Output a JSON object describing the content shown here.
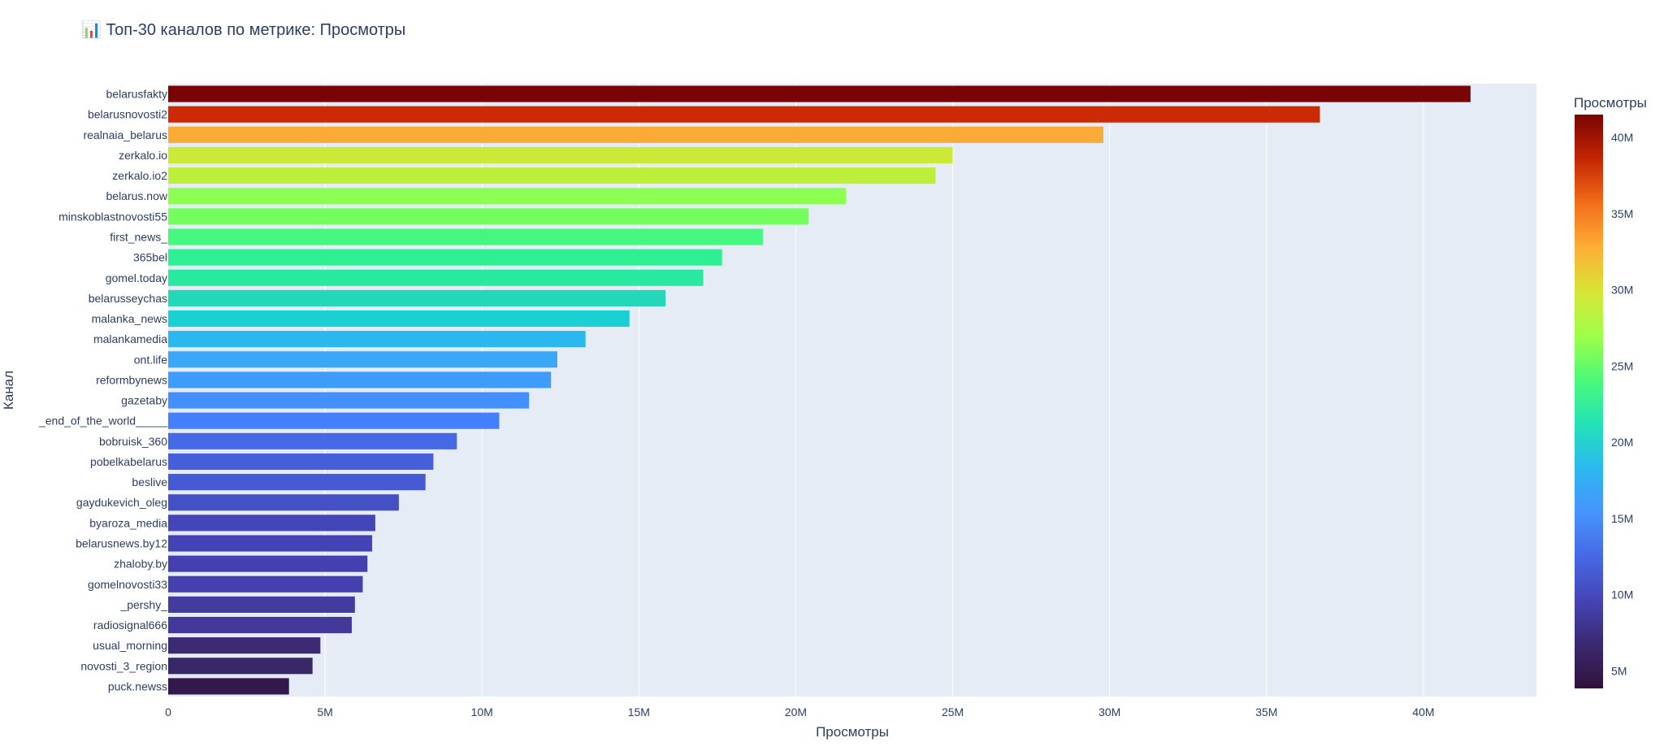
{
  "chart_data": {
    "type": "bar",
    "orientation": "horizontal",
    "title": "📊 Топ-30 каналов по метрике: Просмотры",
    "xlabel": "Просмотры",
    "ylabel": "Канал",
    "xlim": [
      0,
      43600000
    ],
    "x_ticks": [
      {
        "value": 0,
        "label": "0"
      },
      {
        "value": 5000000,
        "label": "5M"
      },
      {
        "value": 10000000,
        "label": "10M"
      },
      {
        "value": 15000000,
        "label": "15M"
      },
      {
        "value": 20000000,
        "label": "20M"
      },
      {
        "value": 25000000,
        "label": "25M"
      },
      {
        "value": 30000000,
        "label": "30M"
      },
      {
        "value": 35000000,
        "label": "35M"
      },
      {
        "value": 40000000,
        "label": "40M"
      }
    ],
    "grid": true,
    "colorscale": "Turbo",
    "categories": [
      "belarusfakty",
      "belarusnovosti2",
      "realnaia_belarus",
      "zerkalo.io",
      "zerkalo.io2",
      "belarus.now",
      "minskoblastnovosti55",
      "first_news_",
      "365bel",
      "gomel.today",
      "belarusseychas",
      "malanka_news",
      "malankamedia",
      "ont.life",
      "reformbynews",
      "gazetaby",
      "_end_of_the_world_____",
      "bobruisk_360",
      "pobelkabelarus",
      "beslive",
      "gaydukevich_oleg",
      "byaroza_media",
      "belarusnews.by12",
      "zhaloby.by",
      "gomelnovosti33",
      "_pershy_",
      "radiosignal666",
      "usual_morning",
      "novosti_3_region",
      "puck.newss"
    ],
    "values": [
      41500000,
      36700000,
      29800000,
      25000000,
      24450000,
      21600000,
      20400000,
      18950000,
      17650000,
      17050000,
      15850000,
      14700000,
      13300000,
      12400000,
      12200000,
      11500000,
      10550000,
      9200000,
      8450000,
      8200000,
      7350000,
      6600000,
      6500000,
      6350000,
      6200000,
      5950000,
      5850000,
      4850000,
      4600000,
      3850000
    ],
    "colors": [
      "#7a0403",
      "#cb2a04",
      "#fba937",
      "#cbe936",
      "#bdef3a",
      "#8dff52",
      "#74fe5d",
      "#45f67f",
      "#2fef93",
      "#29e8a0",
      "#22d8b8",
      "#1bd0d5",
      "#2ab8ef",
      "#3aa8f7",
      "#3e9dfc",
      "#4290fe",
      "#4480fb",
      "#4669e6",
      "#465ed9",
      "#465ad5",
      "#4550c5",
      "#4445b8",
      "#4443b5",
      "#4440b1",
      "#4440b0",
      "#433b9e",
      "#43399b",
      "#3d2a74",
      "#3a2767",
      "#33184e"
    ],
    "colorbar": {
      "title": "Просмотры",
      "ticks": [
        {
          "value": 5000000,
          "label": "5M"
        },
        {
          "value": 10000000,
          "label": "10M"
        },
        {
          "value": 15000000,
          "label": "15M"
        },
        {
          "value": 20000000,
          "label": "20M"
        },
        {
          "value": 25000000,
          "label": "25M"
        },
        {
          "value": 30000000,
          "label": "30M"
        },
        {
          "value": 35000000,
          "label": "35M"
        },
        {
          "value": 40000000,
          "label": "40M"
        }
      ],
      "range": [
        3850000,
        41500000
      ],
      "stops": [
        "#7a0403",
        "#c42503",
        "#f26d19",
        "#fdae35",
        "#d7e535",
        "#9efe47",
        "#4cfa78",
        "#22e3b6",
        "#2bb9ef",
        "#4694fd",
        "#4669e6",
        "#4544b6",
        "#3b2971",
        "#30123b"
      ]
    },
    "plot_bg": "#e5ecf6",
    "grid_color": "#ffffff",
    "text_color": "#2a3f5f"
  }
}
